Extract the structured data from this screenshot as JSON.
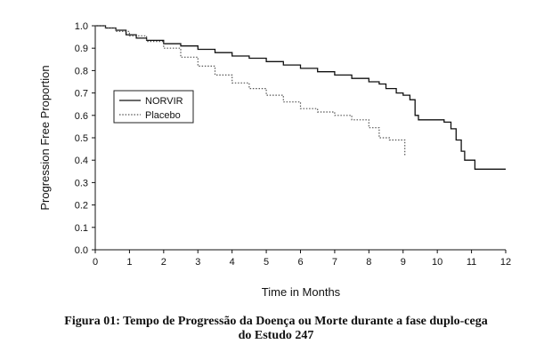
{
  "chart_data": {
    "type": "line",
    "title": "",
    "xlabel": "Time in Months",
    "ylabel": "Progression Free Proportion",
    "xlim": [
      0,
      12
    ],
    "ylim": [
      0,
      1.0
    ],
    "x_ticks": [
      "0",
      "1",
      "2",
      "3",
      "4",
      "5",
      "6",
      "7",
      "8",
      "9",
      "10",
      "11",
      "12"
    ],
    "y_ticks": [
      "0.0",
      "0.1",
      "0.2",
      "0.3",
      "0.4",
      "0.5",
      "0.6",
      "0.7",
      "0.8",
      "0.9",
      "1.0"
    ],
    "grid": false,
    "legend_position": "left",
    "series": [
      {
        "name": "NORVIR",
        "style": "solid",
        "color": "#111111",
        "points": [
          [
            0,
            1.0
          ],
          [
            0.3,
            0.99
          ],
          [
            0.6,
            0.98
          ],
          [
            0.9,
            0.96
          ],
          [
            1.2,
            0.945
          ],
          [
            1.5,
            0.935
          ],
          [
            2.0,
            0.92
          ],
          [
            2.5,
            0.91
          ],
          [
            3.0,
            0.895
          ],
          [
            3.5,
            0.88
          ],
          [
            4.0,
            0.865
          ],
          [
            4.5,
            0.855
          ],
          [
            5.0,
            0.84
          ],
          [
            5.5,
            0.825
          ],
          [
            6.0,
            0.81
          ],
          [
            6.5,
            0.795
          ],
          [
            7.0,
            0.78
          ],
          [
            7.5,
            0.765
          ],
          [
            8.0,
            0.75
          ],
          [
            8.3,
            0.74
          ],
          [
            8.5,
            0.72
          ],
          [
            8.8,
            0.7
          ],
          [
            9.0,
            0.69
          ],
          [
            9.2,
            0.67
          ],
          [
            9.35,
            0.6
          ],
          [
            9.45,
            0.58
          ],
          [
            10.2,
            0.57
          ],
          [
            10.4,
            0.54
          ],
          [
            10.55,
            0.49
          ],
          [
            10.7,
            0.44
          ],
          [
            10.8,
            0.4
          ],
          [
            11.1,
            0.36
          ],
          [
            12,
            0.36
          ]
        ]
      },
      {
        "name": "Placebo",
        "style": "dotted",
        "color": "#555555",
        "points": [
          [
            0,
            1.0
          ],
          [
            0.3,
            0.99
          ],
          [
            0.6,
            0.975
          ],
          [
            1.0,
            0.955
          ],
          [
            1.5,
            0.93
          ],
          [
            2.0,
            0.9
          ],
          [
            2.5,
            0.86
          ],
          [
            3.0,
            0.82
          ],
          [
            3.5,
            0.78
          ],
          [
            4.0,
            0.745
          ],
          [
            4.5,
            0.72
          ],
          [
            5.0,
            0.69
          ],
          [
            5.5,
            0.66
          ],
          [
            6.0,
            0.63
          ],
          [
            6.5,
            0.615
          ],
          [
            7.0,
            0.6
          ],
          [
            7.5,
            0.58
          ],
          [
            8.0,
            0.545
          ],
          [
            8.3,
            0.5
          ],
          [
            8.6,
            0.49
          ],
          [
            8.9,
            0.49
          ],
          [
            9.05,
            0.42
          ]
        ]
      }
    ]
  },
  "caption": {
    "line1": "Figura 01: Tempo de Progressão da Doença ou Morte durante a fase duplo-cega",
    "line2": "do Estudo 247"
  }
}
